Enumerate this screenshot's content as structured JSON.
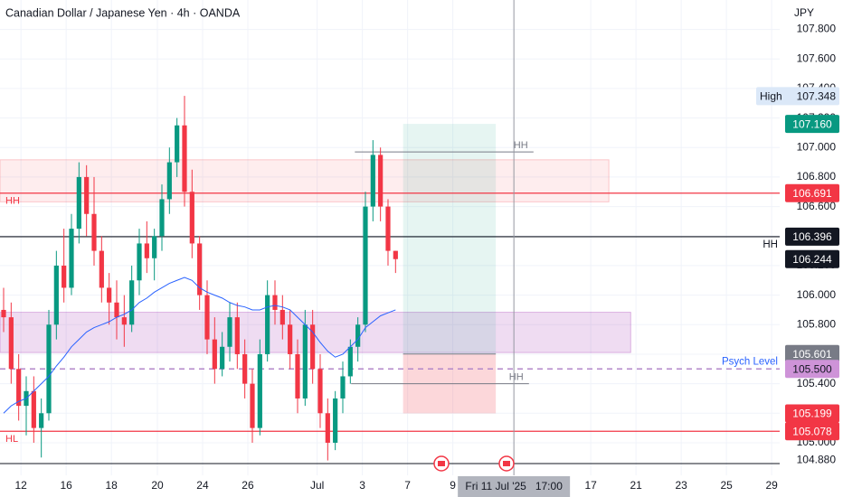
{
  "chart_data": {
    "type": "candlestick",
    "title": "Canadian Dollar / Japanese Yen · 4h · OANDA",
    "currency": "JPY",
    "up_color": "#089981",
    "down_color": "#f23645",
    "ma_color": "#2962ff",
    "ohlc": [
      [
        105.9,
        106.05,
        105.75,
        105.85
      ],
      [
        105.85,
        105.95,
        105.4,
        105.5
      ],
      [
        105.5,
        105.6,
        105.15,
        105.25
      ],
      [
        105.25,
        105.45,
        105.05,
        105.35
      ],
      [
        105.35,
        105.45,
        105.0,
        105.1
      ],
      [
        105.1,
        105.3,
        104.9,
        105.2
      ],
      [
        105.2,
        105.9,
        105.15,
        105.8
      ],
      [
        105.8,
        106.3,
        105.7,
        106.2
      ],
      [
        106.2,
        106.45,
        105.95,
        106.05
      ],
      [
        106.05,
        106.55,
        106.0,
        106.45
      ],
      [
        106.45,
        106.9,
        106.35,
        106.8
      ],
      [
        106.8,
        106.88,
        106.4,
        106.55
      ],
      [
        106.55,
        106.8,
        106.2,
        106.3
      ],
      [
        106.3,
        106.4,
        105.95,
        106.05
      ],
      [
        106.05,
        106.15,
        105.8,
        105.95
      ],
      [
        105.95,
        106.1,
        105.7,
        105.85
      ],
      [
        105.85,
        106.0,
        105.65,
        105.8
      ],
      [
        105.8,
        106.2,
        105.75,
        106.1
      ],
      [
        106.1,
        106.45,
        106.0,
        106.35
      ],
      [
        106.35,
        106.5,
        106.15,
        106.25
      ],
      [
        106.25,
        106.45,
        106.1,
        106.4
      ],
      [
        106.4,
        106.75,
        106.3,
        106.65
      ],
      [
        106.65,
        107.0,
        106.55,
        106.9
      ],
      [
        106.9,
        107.2,
        106.8,
        107.15
      ],
      [
        107.15,
        107.35,
        106.6,
        106.7
      ],
      [
        106.7,
        106.85,
        106.25,
        106.35
      ],
      [
        106.35,
        106.4,
        105.9,
        106.0
      ],
      [
        106.0,
        106.1,
        105.6,
        105.7
      ],
      [
        105.7,
        105.85,
        105.4,
        105.5
      ],
      [
        105.5,
        105.75,
        105.45,
        105.65
      ],
      [
        105.65,
        105.95,
        105.55,
        105.85
      ],
      [
        105.85,
        105.95,
        105.5,
        105.6
      ],
      [
        105.6,
        105.7,
        105.3,
        105.4
      ],
      [
        105.4,
        105.5,
        105.0,
        105.1
      ],
      [
        105.1,
        105.7,
        105.05,
        105.6
      ],
      [
        105.6,
        106.1,
        105.55,
        106.0
      ],
      [
        106.0,
        106.1,
        105.8,
        105.9
      ],
      [
        105.9,
        106.0,
        105.7,
        105.8
      ],
      [
        105.8,
        105.9,
        105.5,
        105.6
      ],
      [
        105.6,
        105.7,
        105.2,
        105.3
      ],
      [
        105.3,
        105.9,
        105.25,
        105.8
      ],
      [
        105.8,
        105.9,
        105.4,
        105.5
      ],
      [
        105.5,
        105.6,
        105.1,
        105.2
      ],
      [
        105.2,
        105.3,
        104.88,
        105.0
      ],
      [
        105.0,
        105.35,
        104.95,
        105.3
      ],
      [
        105.3,
        105.55,
        105.2,
        105.45
      ],
      [
        105.45,
        105.7,
        105.4,
        105.65
      ],
      [
        105.65,
        105.85,
        105.55,
        105.8
      ],
      [
        105.8,
        106.7,
        105.75,
        106.6
      ],
      [
        106.6,
        107.05,
        106.5,
        106.95
      ],
      [
        106.95,
        107.0,
        106.5,
        106.6
      ],
      [
        106.6,
        106.65,
        106.2,
        106.3
      ],
      [
        106.3,
        106.3,
        106.15,
        106.244
      ]
    ],
    "ma": [
      105.2,
      105.25,
      105.28,
      105.3,
      105.35,
      105.4,
      105.45,
      105.52,
      105.58,
      105.65,
      105.7,
      105.75,
      105.78,
      105.8,
      105.82,
      105.85,
      105.87,
      105.9,
      105.95,
      105.98,
      106.02,
      106.05,
      106.08,
      106.1,
      106.12,
      106.1,
      106.05,
      106.02,
      106.0,
      105.98,
      105.95,
      105.93,
      105.92,
      105.9,
      105.9,
      105.92,
      105.93,
      105.92,
      105.9,
      105.85,
      105.8,
      105.75,
      105.68,
      105.62,
      105.58,
      105.6,
      105.65,
      105.7,
      105.78,
      105.82,
      105.86,
      105.88,
      105.9
    ],
    "ylim": [
      104.81,
      107.82
    ],
    "yticks": [
      {
        "value": 107.8,
        "label": "107.800"
      },
      {
        "value": 107.6,
        "label": "107.600"
      },
      {
        "value": 107.4,
        "label": "107.400"
      },
      {
        "value": 107.2,
        "label": "107.200"
      },
      {
        "value": 107.0,
        "label": "107.000"
      },
      {
        "value": 106.8,
        "label": "106.800"
      },
      {
        "value": 106.6,
        "label": "106.600"
      },
      {
        "value": 106.4,
        "label": "106.400"
      },
      {
        "value": 106.2,
        "label": "106.200"
      },
      {
        "value": 106.0,
        "label": "106.000"
      },
      {
        "value": 105.8,
        "label": "105.800"
      },
      {
        "value": 105.6,
        "label": "105.600"
      },
      {
        "value": 105.4,
        "label": "105.400"
      },
      {
        "value": 105.2,
        "label": "105.200"
      },
      {
        "value": 105.0,
        "label": "105.000"
      }
    ],
    "xticks": [
      {
        "value": 2.3,
        "label": "12"
      },
      {
        "value": 8.3,
        "label": "16"
      },
      {
        "value": 14.3,
        "label": "18"
      },
      {
        "value": 20.4,
        "label": "20"
      },
      {
        "value": 26.4,
        "label": "24"
      },
      {
        "value": 32.4,
        "label": "26"
      },
      {
        "value": 41.6,
        "label": "Jul"
      },
      {
        "value": 47.6,
        "label": "3"
      },
      {
        "value": 53.6,
        "label": "7"
      },
      {
        "value": 59.6,
        "label": "9"
      },
      {
        "value": 77.9,
        "label": "17"
      },
      {
        "value": 83.9,
        "label": "21"
      },
      {
        "value": 89.9,
        "label": "23"
      },
      {
        "value": 95.9,
        "label": "25"
      },
      {
        "value": 101.9,
        "label": "29"
      }
    ],
    "zones": [
      {
        "top": 106.917,
        "bottom": 106.632,
        "end": 80.3,
        "color": "rgba(242,54,69,0.09)",
        "edge": "rgba(242,54,69,0.25)"
      },
      {
        "top": 105.884,
        "bottom": 105.611,
        "end": 83.2,
        "color": "rgba(156,39,176,0.16)",
        "edge": "rgba(156,39,176,0.3)"
      }
    ],
    "levels": [
      {
        "price": 106.691,
        "color": "#f23645",
        "left_text": "HH"
      },
      {
        "price": 106.396,
        "color": "#131722",
        "right_text": "HH"
      },
      {
        "price": 105.078,
        "color": "#f23645",
        "left_text": "HL"
      },
      {
        "price": {
          "value": 105.5,
          "label": "105.500"
        },
        "color": "#b388c9",
        "dashed": true,
        "right_text": "Psych Level",
        "text_color": "#2962ff"
      }
    ],
    "position": {
      "start": 53.0,
      "end": 65.3,
      "target": {
        "value": 107.16,
        "label": "107.160"
      },
      "entry": 105.601,
      "stop": 105.199
    },
    "markers": [
      {
        "price": 106.97,
        "start": 46.6,
        "end": 70.3,
        "text": "HH"
      },
      {
        "price": 105.4,
        "start": 46.1,
        "end": 69.7,
        "text": "HH"
      }
    ],
    "high": {
      "text": "High",
      "value": 107.348
    },
    "crosshair": {
      "x": 67.7,
      "time": "Fri 11 Jul '25   17:00",
      "price": {
        "value": 104.88,
        "label": "104.880"
      }
    }
  }
}
